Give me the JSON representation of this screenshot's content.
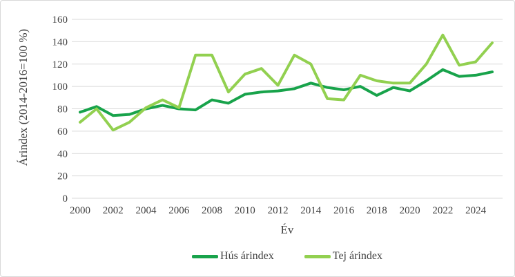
{
  "chart_data": {
    "type": "line",
    "title": "",
    "xlabel": "Év",
    "ylabel": "Árindex (2014-2016=100 %)",
    "x": [
      2000,
      2001,
      2002,
      2003,
      2004,
      2005,
      2006,
      2007,
      2008,
      2009,
      2010,
      2011,
      2012,
      2013,
      2014,
      2015,
      2016,
      2017,
      2018,
      2019,
      2020,
      2021,
      2022,
      2023,
      2024,
      2025
    ],
    "x_tick_years": [
      2000,
      2002,
      2004,
      2006,
      2008,
      2010,
      2012,
      2014,
      2016,
      2018,
      2020,
      2022,
      2024
    ],
    "y_ticks": [
      0,
      20,
      40,
      60,
      80,
      100,
      120,
      140,
      160
    ],
    "ylim": [
      0,
      160
    ],
    "grid": "horizontal",
    "legend_position": "bottom",
    "series": [
      {
        "name": "Hús árindex",
        "color": "#18a34b",
        "values": [
          77,
          82,
          74,
          75,
          80,
          83,
          80,
          79,
          88,
          85,
          93,
          95,
          96,
          98,
          103,
          99,
          97,
          100,
          92,
          99,
          96,
          105,
          115,
          109,
          110,
          113
        ]
      },
      {
        "name": "Tej árindex",
        "color": "#92d050",
        "values": [
          68,
          80,
          61,
          68,
          81,
          88,
          81,
          128,
          128,
          95,
          111,
          116,
          101,
          128,
          120,
          89,
          88,
          110,
          105,
          103,
          103,
          120,
          146,
          119,
          122,
          139
        ]
      }
    ],
    "style": {
      "text_color": "#3f3f3f",
      "gridline_color": "#d9d9d9"
    }
  }
}
